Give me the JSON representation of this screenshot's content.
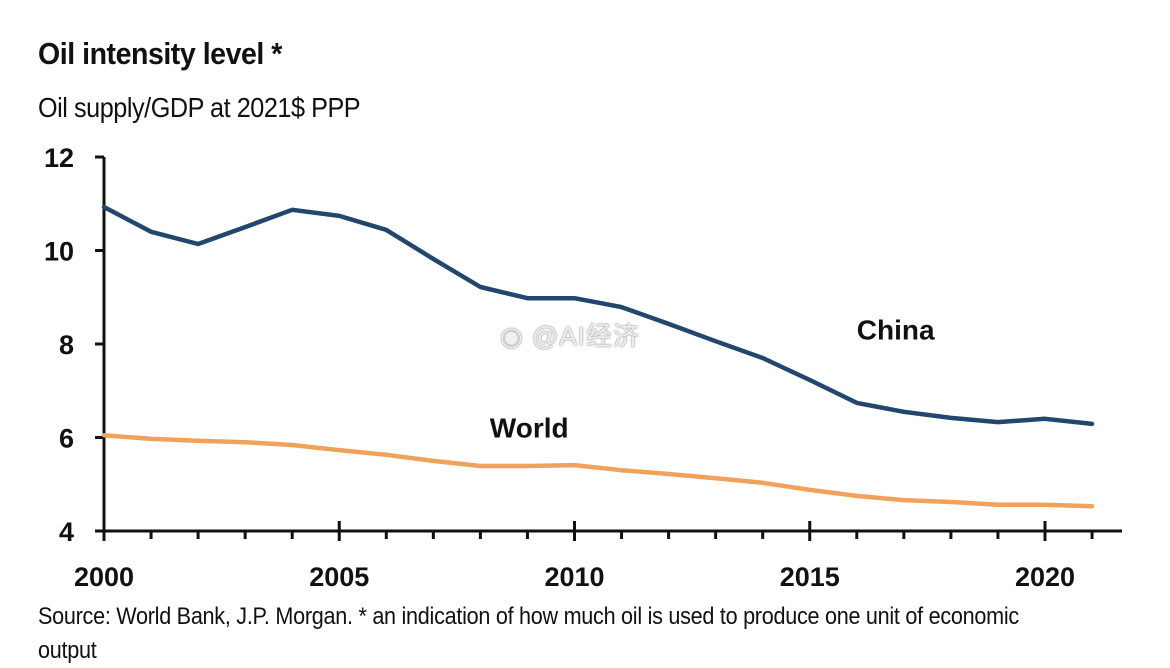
{
  "header": {
    "title": "Oil intensity level *",
    "subtitle": "Oil supply/GDP at 2021$ PPP"
  },
  "footer": {
    "source": "Source: World Bank, J.P. Morgan. * an indication of how much oil is used to produce one unit of economic output"
  },
  "watermark": {
    "icon": "weibo-icon",
    "text": "@AI经济"
  },
  "chart_data": {
    "type": "line",
    "title": "Oil intensity level *",
    "subtitle": "Oil supply/GDP at 2021$ PPP",
    "xlabel": "",
    "ylabel": "",
    "x": [
      2000,
      2001,
      2002,
      2003,
      2004,
      2005,
      2006,
      2007,
      2008,
      2009,
      2010,
      2011,
      2012,
      2013,
      2014,
      2015,
      2016,
      2017,
      2018,
      2019,
      2020,
      2021
    ],
    "xlim": [
      2000,
      2022
    ],
    "ylim": [
      4,
      12
    ],
    "xticks": [
      2000,
      2005,
      2010,
      2015,
      2020
    ],
    "xtick_labels": [
      "2000",
      "2005",
      "2010",
      "2015",
      "2020"
    ],
    "yticks": [
      4,
      6,
      8,
      10,
      12
    ],
    "ytick_labels": [
      "4",
      "6",
      "8",
      "10",
      "12"
    ],
    "grid": false,
    "legend": "inline labels",
    "series": [
      {
        "name": "China",
        "color": "#23466f",
        "values": [
          10.93,
          10.4,
          10.14,
          10.5,
          10.87,
          10.74,
          10.44,
          9.82,
          9.22,
          8.98,
          8.98,
          8.79,
          8.43,
          8.06,
          7.7,
          7.23,
          6.74,
          6.55,
          6.42,
          6.33,
          6.4,
          6.29
        ]
      },
      {
        "name": "World",
        "color": "#f0a25a",
        "values": [
          6.05,
          5.97,
          5.93,
          5.9,
          5.84,
          5.73,
          5.63,
          5.5,
          5.39,
          5.39,
          5.41,
          5.3,
          5.22,
          5.13,
          5.03,
          4.88,
          4.75,
          4.66,
          4.62,
          4.56,
          4.56,
          4.53
        ]
      }
    ],
    "annotations": [
      {
        "text": "China",
        "x": 2016.0,
        "y": 8.1
      },
      {
        "text": "World",
        "x": 2008.2,
        "y": 6.0
      }
    ],
    "source": "Source: World Bank, J.P. Morgan. * an indication of how much oil is used to produce one unit of economic output"
  }
}
